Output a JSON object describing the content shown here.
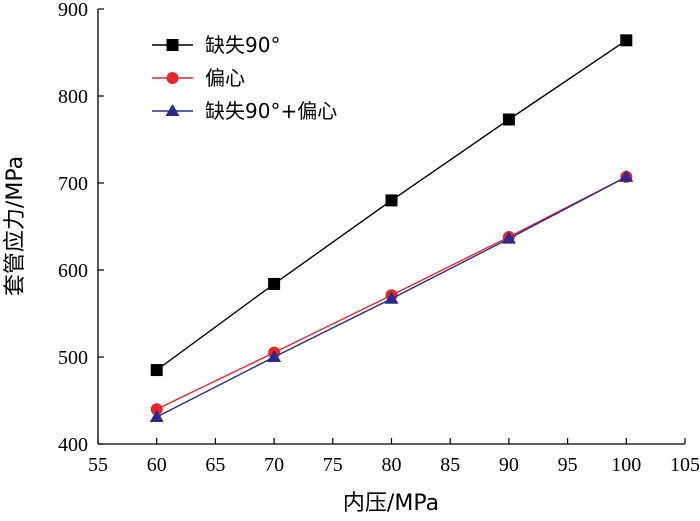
{
  "chart_data": {
    "type": "line",
    "title": "",
    "xlabel": "内压/MPa",
    "ylabel": "套管应力/MPa",
    "xlim": [
      55,
      105
    ],
    "ylim": [
      400,
      900
    ],
    "xticks": [
      "55",
      "60",
      "65",
      "70",
      "75",
      "80",
      "85",
      "90",
      "95",
      "100",
      "105"
    ],
    "yticks": [
      "400",
      "500",
      "600",
      "700",
      "800",
      "900"
    ],
    "x": [
      60,
      70,
      80,
      90,
      100
    ],
    "legend_position": "top-left",
    "grid": false,
    "series": [
      {
        "name": "缺失90°",
        "marker": "square",
        "color": "#000000",
        "marker_color": "#000000",
        "values": [
          485,
          584,
          680,
          773,
          864
        ]
      },
      {
        "name": "偏心",
        "marker": "circle",
        "color": "#e8262a",
        "marker_color": "#e8262a",
        "values": [
          440,
          505,
          571,
          638,
          707
        ]
      },
      {
        "name": "缺失90°+偏心",
        "marker": "triangle",
        "color": "#2b2a8c",
        "marker_color": "#2b2a8c",
        "values": [
          431,
          500,
          567,
          636,
          707
        ]
      }
    ]
  }
}
